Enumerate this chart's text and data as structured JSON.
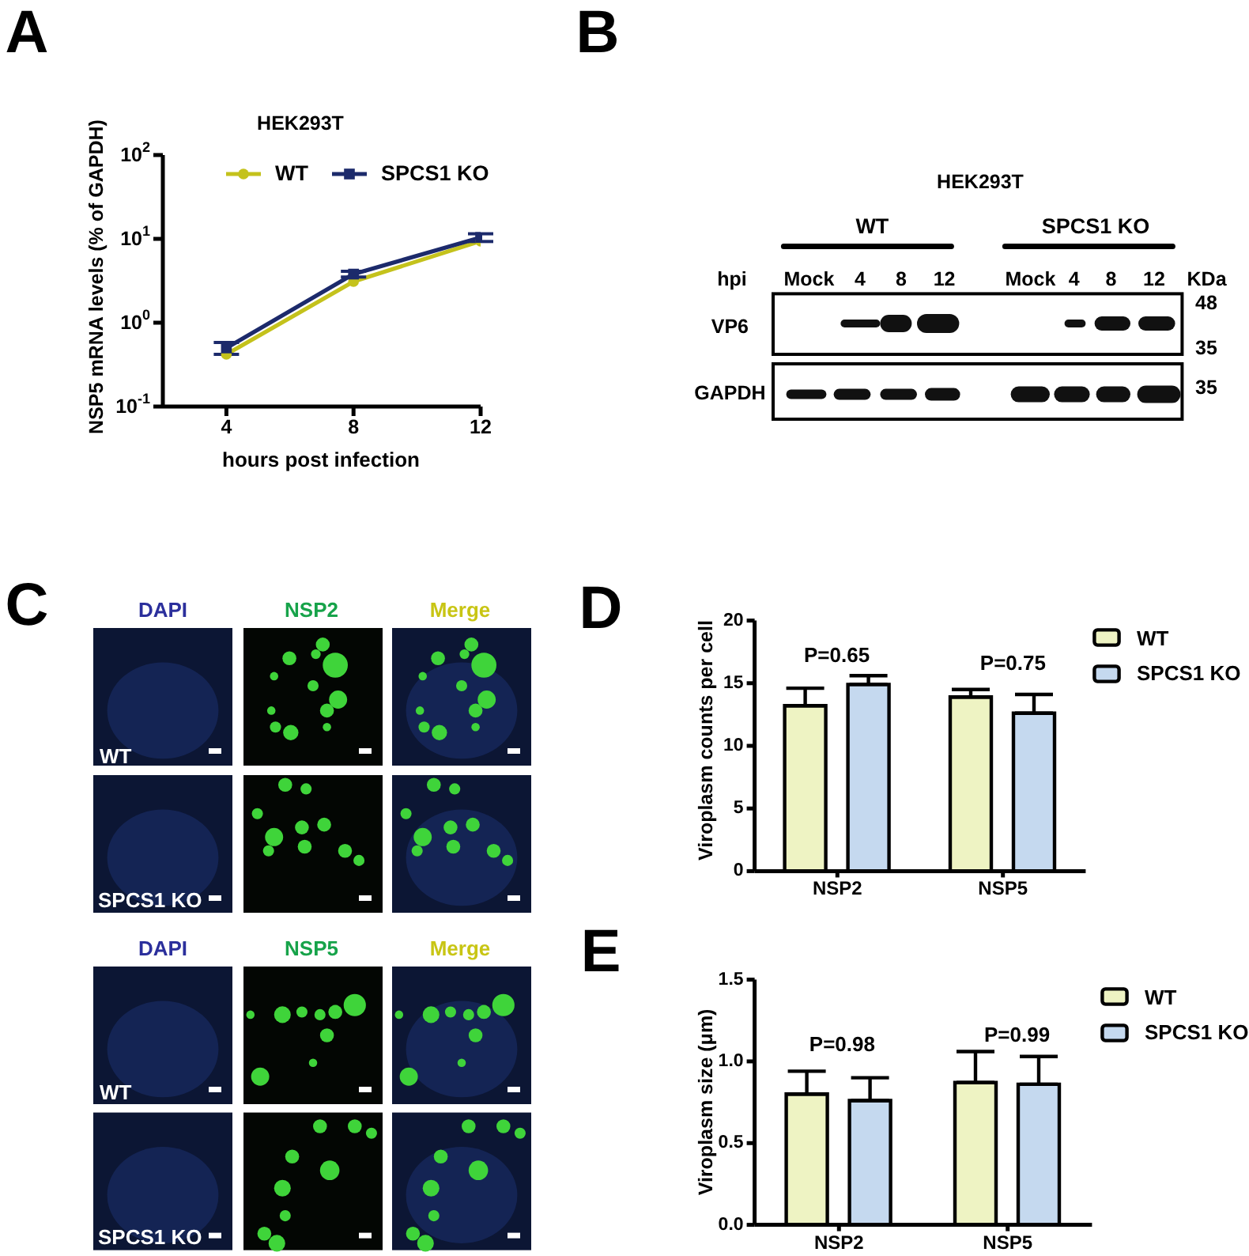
{
  "chart_data": [
    {
      "type": "line",
      "title": "HEK293T",
      "xlabel": "hours post infection",
      "ylabel": "NSP5 mRNA levels (% of GAPDH)",
      "annotations": [
        "A"
      ],
      "x": [
        4,
        8,
        12
      ],
      "series": [
        {
          "name": "WT",
          "color": "#c4c21c",
          "marker": "circle",
          "values": [
            0.42,
            3.1,
            9.4
          ]
        },
        {
          "name": "SPCS1 KO",
          "color": "#1c2a6b",
          "marker": "square",
          "values": [
            0.5,
            3.8,
            10.4
          ],
          "errors": [
            0.08,
            0.3,
            1.1
          ]
        }
      ],
      "xlim": [
        2,
        12
      ],
      "xticks": [
        4,
        8,
        12
      ],
      "ylim": [
        0.1,
        100
      ],
      "yticks": [
        {
          "value": 0.1,
          "label": "10$^{-1}$"
        },
        {
          "value": 1,
          "label": "10$^{0}$"
        },
        {
          "value": 10,
          "label": "10$^{1}$"
        },
        {
          "value": 100,
          "label": "10$^{2}$"
        }
      ],
      "log": "y",
      "legend": "top"
    },
    {
      "type": "other",
      "title": "HEK293T",
      "annotations": [
        "B",
        "WT",
        "SPCS1 KO",
        "hpi",
        "Mock",
        "4",
        "8",
        "12",
        "Mock",
        "4",
        "8",
        "12",
        "KDa",
        "VP6",
        "48",
        "35",
        "GAPDH",
        "35"
      ]
    },
    {
      "type": "other",
      "annotations": [
        "C",
        "DAPI",
        "NSP2",
        "Merge",
        "WT",
        "SPCS1 KO",
        "DAPI",
        "NSP5",
        "Merge",
        "WT",
        "SPCS1 KO"
      ]
    },
    {
      "type": "bar",
      "ylabel": "Viroplasm counts per cell",
      "annotations": [
        "D",
        "P=0.65",
        "P=0.75"
      ],
      "categories": [
        "NSP2",
        "NSP5"
      ],
      "series": [
        {
          "name": "WT",
          "color": "#eef3c3",
          "values": [
            13.2,
            13.9
          ],
          "errors": [
            [
              13.2,
              14.6
            ],
            [
              13.9,
              14.5
            ]
          ]
        },
        {
          "name": "SPCS1 KO",
          "color": "#c5d9ef",
          "values": [
            14.9,
            12.6
          ],
          "errors": [
            [
              14.9,
              15.6
            ],
            [
              12.6,
              14.1
            ]
          ]
        }
      ],
      "ylim": [
        0,
        20
      ],
      "yticks": [
        0,
        5,
        10,
        15,
        20
      ],
      "legend": "top right"
    },
    {
      "type": "bar",
      "ylabel": "Viroplasm size (μm)",
      "annotations": [
        "E",
        "P=0.98",
        "P=0.99"
      ],
      "categories": [
        "NSP2",
        "NSP5"
      ],
      "series": [
        {
          "name": "WT",
          "color": "#eef3c3",
          "values": [
            0.8,
            0.87
          ],
          "errors": [
            [
              0.8,
              0.94
            ],
            [
              0.87,
              1.06
            ]
          ]
        },
        {
          "name": "SPCS1 KO",
          "color": "#c5d9ef",
          "values": [
            0.76,
            0.86
          ],
          "errors": [
            [
              0.76,
              0.9
            ],
            [
              0.86,
              1.03
            ]
          ]
        }
      ],
      "ylim": [
        0,
        1.5
      ],
      "yticks": [
        {
          "value": 0,
          "label": "0.0"
        },
        0.5,
        {
          "value": 1,
          "label": "1.0"
        },
        1.5
      ],
      "legend": "top right"
    }
  ]
}
